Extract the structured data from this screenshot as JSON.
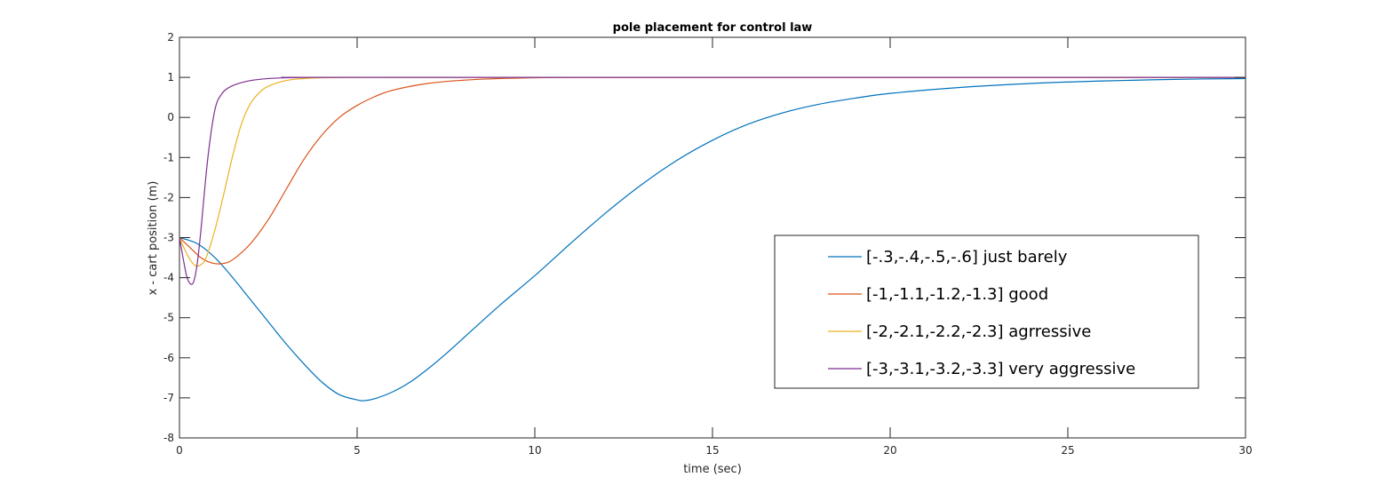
{
  "chart_data": {
    "type": "line",
    "title": "pole placement for control law",
    "xlabel": "time (sec)",
    "ylabel": "x - cart position (m)",
    "xlim": [
      0,
      30
    ],
    "ylim": [
      -8,
      2
    ],
    "xticks": [
      0,
      5,
      10,
      15,
      20,
      25,
      30
    ],
    "yticks": [
      -8,
      -7,
      -6,
      -5,
      -4,
      -3,
      -2,
      -1,
      0,
      1,
      2
    ],
    "grid": false,
    "legend_position": "center-right",
    "series": [
      {
        "name": "[-.3,-.4,-.5,-.6] just barely",
        "color": "#0072BD",
        "x": [
          0,
          0.5,
          1,
          1.5,
          2,
          2.5,
          3,
          3.5,
          4,
          4.5,
          5,
          5.2,
          5.5,
          6,
          6.5,
          7,
          7.5,
          8,
          9,
          10,
          11,
          12,
          13,
          14,
          15,
          16,
          17,
          18,
          19,
          20,
          22,
          24,
          26,
          28,
          30
        ],
        "y": [
          -3.0,
          -3.15,
          -3.5,
          -4.0,
          -4.55,
          -5.1,
          -5.65,
          -6.15,
          -6.6,
          -6.92,
          -7.05,
          -7.07,
          -7.02,
          -6.85,
          -6.6,
          -6.27,
          -5.9,
          -5.5,
          -4.7,
          -3.95,
          -3.15,
          -2.38,
          -1.68,
          -1.07,
          -0.57,
          -0.17,
          0.12,
          0.33,
          0.48,
          0.6,
          0.75,
          0.85,
          0.91,
          0.95,
          0.97
        ]
      },
      {
        "name": "[-1,-1.1,-1.2,-1.3] good",
        "color": "#D95319",
        "x": [
          0,
          0.3,
          0.6,
          0.9,
          1.2,
          1.5,
          2,
          2.5,
          3,
          3.5,
          4,
          4.5,
          5,
          5.5,
          6,
          7,
          8,
          9,
          10,
          11,
          12,
          15,
          20,
          30
        ],
        "y": [
          -3.0,
          -3.25,
          -3.5,
          -3.63,
          -3.65,
          -3.55,
          -3.15,
          -2.55,
          -1.8,
          -1.05,
          -0.45,
          0.0,
          0.3,
          0.52,
          0.68,
          0.85,
          0.93,
          0.97,
          0.99,
          1.0,
          1.0,
          1.0,
          1.0,
          1.0
        ]
      },
      {
        "name": "[-2,-2.1,-2.2,-2.3] agrressive",
        "color": "#EDB120",
        "x": [
          0,
          0.15,
          0.3,
          0.45,
          0.6,
          0.75,
          1,
          1.25,
          1.5,
          1.75,
          2,
          2.25,
          2.5,
          3,
          3.5,
          4,
          5,
          6,
          8,
          30
        ],
        "y": [
          -3.0,
          -3.3,
          -3.55,
          -3.7,
          -3.68,
          -3.5,
          -2.8,
          -1.9,
          -0.95,
          -0.15,
          0.35,
          0.62,
          0.78,
          0.92,
          0.97,
          0.99,
          1.0,
          1.0,
          1.0,
          1.0
        ]
      },
      {
        "name": "[-3,-3.1,-3.2,-3.3] very aggressive",
        "color": "#7E2F8E",
        "x": [
          0,
          0.1,
          0.2,
          0.3,
          0.4,
          0.5,
          0.6,
          0.8,
          1,
          1.2,
          1.4,
          1.6,
          2,
          2.5,
          3,
          4,
          5,
          30
        ],
        "y": [
          -3.0,
          -3.5,
          -3.95,
          -4.15,
          -4.1,
          -3.65,
          -2.85,
          -1.0,
          0.2,
          0.6,
          0.75,
          0.83,
          0.92,
          0.97,
          0.99,
          1.0,
          1.0,
          1.0
        ]
      }
    ]
  }
}
